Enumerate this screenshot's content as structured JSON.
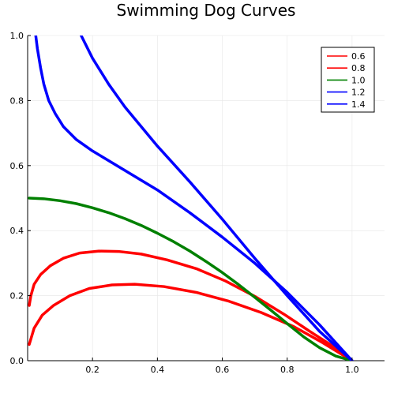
{
  "chart_data": {
    "type": "line",
    "title": "Swimming Dog Curves",
    "xlabel": "",
    "ylabel": "",
    "xlim": [
      0,
      1.1
    ],
    "ylim": [
      0,
      1.0
    ],
    "x_ticks": [
      0.2,
      0.4,
      0.6,
      0.8,
      1.0
    ],
    "x_tick_labels": [
      "0.2",
      "0.4",
      "0.6",
      "0.8",
      "1.0"
    ],
    "y_ticks": [
      0.0,
      0.2,
      0.4,
      0.6,
      0.8,
      1.0
    ],
    "y_tick_labels": [
      "0.0",
      "0.2",
      "0.4",
      "0.6",
      "0.8",
      "1.0"
    ],
    "grid": true,
    "legend_position": "top-right",
    "series": [
      {
        "name": "0.6",
        "color": "#ff0000",
        "x": [
          0.005,
          0.02,
          0.045,
          0.08,
          0.13,
          0.19,
          0.26,
          0.33,
          0.42,
          0.52,
          0.62,
          0.72,
          0.82,
          0.91,
          1.0
        ],
        "y": [
          0.05,
          0.1,
          0.14,
          0.17,
          0.2,
          0.222,
          0.233,
          0.235,
          0.228,
          0.21,
          0.183,
          0.148,
          0.105,
          0.055,
          0.0
        ]
      },
      {
        "name": "0.8",
        "color": "#ff0000",
        "x": [
          0.005,
          0.01,
          0.02,
          0.04,
          0.07,
          0.11,
          0.16,
          0.22,
          0.28,
          0.35,
          0.43,
          0.52,
          0.61,
          0.7,
          0.79,
          0.87,
          0.94,
          1.0
        ],
        "y": [
          0.17,
          0.2,
          0.235,
          0.265,
          0.292,
          0.315,
          0.331,
          0.337,
          0.336,
          0.328,
          0.31,
          0.283,
          0.245,
          0.198,
          0.143,
          0.09,
          0.045,
          0.0
        ]
      },
      {
        "name": "1.0",
        "color": "#008000",
        "x": [
          0.005,
          0.05,
          0.1,
          0.15,
          0.2,
          0.25,
          0.3,
          0.35,
          0.4,
          0.45,
          0.5,
          0.55,
          0.6,
          0.65,
          0.7,
          0.75,
          0.8,
          0.85,
          0.9,
          0.95,
          1.0
        ],
        "y": [
          0.5,
          0.498,
          0.492,
          0.483,
          0.47,
          0.455,
          0.437,
          0.416,
          0.392,
          0.366,
          0.337,
          0.305,
          0.271,
          0.234,
          0.195,
          0.155,
          0.114,
          0.074,
          0.04,
          0.014,
          0.0
        ]
      },
      {
        "name": "1.2",
        "color": "#0000ff",
        "x": [
          0.025,
          0.03,
          0.04,
          0.05,
          0.065,
          0.085,
          0.11,
          0.15,
          0.2,
          0.25,
          0.3,
          0.35,
          0.4,
          0.5,
          0.6,
          0.7,
          0.8,
          0.9,
          1.0
        ],
        "y": [
          1.0,
          0.96,
          0.9,
          0.85,
          0.8,
          0.76,
          0.72,
          0.68,
          0.645,
          0.615,
          0.585,
          0.555,
          0.525,
          0.455,
          0.38,
          0.3,
          0.21,
          0.11,
          0.0
        ]
      },
      {
        "name": "1.4",
        "color": "#0000ff",
        "x": [
          0.165,
          0.2,
          0.25,
          0.3,
          0.35,
          0.4,
          0.5,
          0.6,
          0.7,
          0.8,
          0.9,
          0.95,
          1.0
        ],
        "y": [
          1.0,
          0.93,
          0.85,
          0.78,
          0.72,
          0.66,
          0.55,
          0.435,
          0.315,
          0.2,
          0.09,
          0.045,
          0.0
        ]
      }
    ]
  }
}
